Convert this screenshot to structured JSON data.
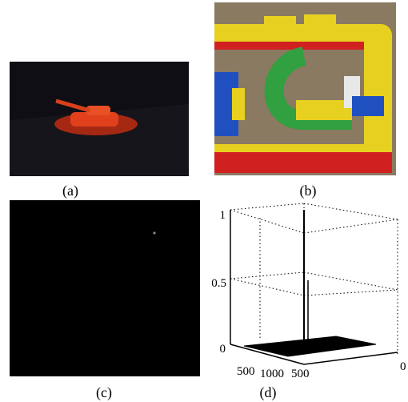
{
  "panels": [
    {
      "caption": "(a)"
    },
    {
      "caption": "(b)"
    },
    {
      "caption": "(c)"
    },
    {
      "caption": "(d)",
      "z_tick_labels": [
        "1",
        "0.5",
        "0"
      ],
      "x_tick_labels": [
        "500",
        "1000"
      ],
      "y_tick_labels": [
        "500",
        "0"
      ]
    }
  ]
}
